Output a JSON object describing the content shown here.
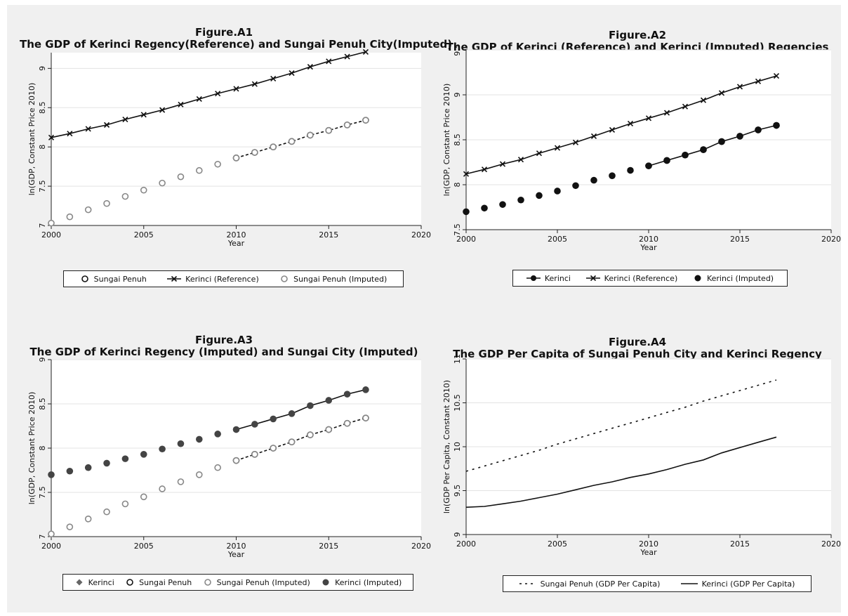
{
  "chart_data": [
    {
      "type": "line",
      "title": "Figure.A1",
      "subtitle": "The GDP of Kerinci Regency(Reference) and Sungai Penuh City(Imputed)",
      "xlabel": "Year",
      "ylabel": "ln(GDP, Constant Price 2010)",
      "xlim": [
        2000,
        2020
      ],
      "ylim": [
        7,
        9.2
      ],
      "xticks": [
        2000,
        2005,
        2010,
        2015,
        2020
      ],
      "yticks": [
        7,
        7.5,
        8,
        8.5,
        9
      ],
      "grid": true,
      "legend_position": "bottom",
      "legend": [
        "Sungai Penuh",
        "Kerinci (Reference)",
        "Sungai Penuh (Imputed)"
      ],
      "series": [
        {
          "name": "Sungai Penuh",
          "marker": "hollow-circle",
          "line": "dash",
          "color": "#111111",
          "x": [
            2010,
            2011,
            2012,
            2013,
            2014,
            2015,
            2016,
            2017
          ],
          "values": [
            7.86,
            7.93,
            8.0,
            8.07,
            8.15,
            8.21,
            8.28,
            8.34
          ]
        },
        {
          "name": "Kerinci (Reference)",
          "marker": "x",
          "line": "solid",
          "color": "#111111",
          "x": [
            2000,
            2001,
            2002,
            2003,
            2004,
            2005,
            2006,
            2007,
            2008,
            2009,
            2010,
            2011,
            2012,
            2013,
            2014,
            2015,
            2016,
            2017
          ],
          "values": [
            8.12,
            8.17,
            8.23,
            8.28,
            8.35,
            8.41,
            8.47,
            8.54,
            8.61,
            8.68,
            8.74,
            8.8,
            8.87,
            8.94,
            9.02,
            9.09,
            9.15,
            9.21
          ]
        },
        {
          "name": "Sungai Penuh (Imputed)",
          "marker": "gray-circle",
          "line": "none",
          "color": "#888888",
          "x": [
            2000,
            2001,
            2002,
            2003,
            2004,
            2005,
            2006,
            2007,
            2008,
            2009,
            2010,
            2011,
            2012,
            2013,
            2014,
            2015,
            2016,
            2017
          ],
          "values": [
            7.03,
            7.11,
            7.2,
            7.28,
            7.37,
            7.45,
            7.54,
            7.62,
            7.7,
            7.78,
            7.86,
            7.93,
            8.0,
            8.07,
            8.15,
            8.21,
            8.28,
            8.34
          ]
        }
      ]
    },
    {
      "type": "line",
      "title": "Figure.A2",
      "subtitle": "The GDP of Kerinci (Reference) and Kerinci (Imputed) Regencies",
      "xlabel": "Year",
      "ylabel": "ln(GDP, Constant Price 2010)",
      "xlim": [
        2000,
        2020
      ],
      "ylim": [
        7.5,
        9.5
      ],
      "xticks": [
        2000,
        2005,
        2010,
        2015,
        2020
      ],
      "yticks": [
        7.5,
        8,
        8.5,
        9,
        9.5
      ],
      "grid": true,
      "legend_position": "bottom",
      "legend": [
        "Kerinci",
        "Kerinci (Reference)",
        "Kerinci (Imputed)"
      ],
      "series": [
        {
          "name": "Kerinci",
          "marker": "solid-circle",
          "line": "solid",
          "color": "#111111",
          "x": [
            2010,
            2011,
            2012,
            2013,
            2014,
            2015,
            2016,
            2017
          ],
          "values": [
            8.21,
            8.27,
            8.33,
            8.39,
            8.48,
            8.54,
            8.61,
            8.66
          ]
        },
        {
          "name": "Kerinci (Reference)",
          "marker": "x",
          "line": "solid",
          "color": "#111111",
          "x": [
            2000,
            2001,
            2002,
            2003,
            2004,
            2005,
            2006,
            2007,
            2008,
            2009,
            2010,
            2011,
            2012,
            2013,
            2014,
            2015,
            2016,
            2017
          ],
          "values": [
            8.12,
            8.17,
            8.23,
            8.28,
            8.35,
            8.41,
            8.47,
            8.54,
            8.61,
            8.68,
            8.74,
            8.8,
            8.87,
            8.94,
            9.02,
            9.09,
            9.15,
            9.21
          ]
        },
        {
          "name": "Kerinci (Imputed)",
          "marker": "solid-circle",
          "line": "none",
          "color": "#111111",
          "x": [
            2000,
            2001,
            2002,
            2003,
            2004,
            2005,
            2006,
            2007,
            2008,
            2009,
            2010,
            2011,
            2012,
            2013,
            2014,
            2015,
            2016,
            2017
          ],
          "values": [
            7.7,
            7.74,
            7.78,
            7.83,
            7.88,
            7.93,
            7.99,
            8.05,
            8.1,
            8.16,
            8.21,
            8.27,
            8.33,
            8.39,
            8.48,
            8.54,
            8.61,
            8.66
          ]
        }
      ]
    },
    {
      "type": "line",
      "title": "Figure.A3",
      "subtitle": "The GDP of Kerinci Regency (Imputed) and Sungai City (Imputed)",
      "xlabel": "Year",
      "ylabel": "ln(GDP, Constant Price 2010)",
      "xlim": [
        2000,
        2020
      ],
      "ylim": [
        7,
        9
      ],
      "xticks": [
        2000,
        2005,
        2010,
        2015,
        2020
      ],
      "yticks": [
        7,
        7.5,
        8,
        8.5,
        9
      ],
      "grid": true,
      "legend_position": "bottom",
      "legend": [
        "Kerinci",
        "Sungai Penuh",
        "Sungai Penuh (Imputed)",
        "Kerinci (Imputed)"
      ],
      "series": [
        {
          "name": "Kerinci",
          "marker": "diamond",
          "line": "solid",
          "color": "#111111",
          "x": [
            2010,
            2011,
            2012,
            2013,
            2014,
            2015,
            2016,
            2017
          ],
          "values": [
            8.21,
            8.27,
            8.33,
            8.39,
            8.48,
            8.54,
            8.61,
            8.66
          ]
        },
        {
          "name": "Sungai Penuh",
          "marker": "hollow-circle",
          "line": "dash",
          "color": "#111111",
          "x": [
            2010,
            2011,
            2012,
            2013,
            2014,
            2015,
            2016,
            2017
          ],
          "values": [
            7.86,
            7.93,
            8.0,
            8.07,
            8.15,
            8.21,
            8.28,
            8.34
          ]
        },
        {
          "name": "Sungai Penuh (Imputed)",
          "marker": "gray-circle",
          "line": "none",
          "color": "#888888",
          "x": [
            2000,
            2001,
            2002,
            2003,
            2004,
            2005,
            2006,
            2007,
            2008,
            2009,
            2010,
            2011,
            2012,
            2013,
            2014,
            2015,
            2016,
            2017
          ],
          "values": [
            7.03,
            7.11,
            7.2,
            7.28,
            7.37,
            7.45,
            7.54,
            7.62,
            7.7,
            7.78,
            7.86,
            7.93,
            8.0,
            8.07,
            8.15,
            8.21,
            8.28,
            8.34
          ]
        },
        {
          "name": "Kerinci (Imputed)",
          "marker": "dark-circle",
          "line": "none",
          "color": "#444444",
          "x": [
            2000,
            2001,
            2002,
            2003,
            2004,
            2005,
            2006,
            2007,
            2008,
            2009,
            2010,
            2011,
            2012,
            2013,
            2014,
            2015,
            2016,
            2017
          ],
          "values": [
            7.7,
            7.74,
            7.78,
            7.83,
            7.88,
            7.93,
            7.99,
            8.05,
            8.1,
            8.16,
            8.21,
            8.27,
            8.33,
            8.39,
            8.48,
            8.54,
            8.61,
            8.66
          ]
        }
      ]
    },
    {
      "type": "line",
      "title": "Figure.A4",
      "subtitle": "The GDP Per Capita of Sungai Penuh City and Kerinci Regency",
      "xlabel": "Year",
      "ylabel": "ln(GDP Per Capita, Constant 2010)",
      "xlim": [
        2000,
        2020
      ],
      "ylim": [
        9,
        11
      ],
      "xticks": [
        2000,
        2005,
        2010,
        2015,
        2020
      ],
      "yticks": [
        9,
        9.5,
        10,
        10.5,
        11
      ],
      "grid": true,
      "legend_position": "bottom",
      "legend": [
        "Sungai Penuh (GDP Per Capita)",
        "Kerinci (GDP Per Capita)"
      ],
      "series": [
        {
          "name": "Sungai Penuh (GDP Per Capita)",
          "marker": "none",
          "line": "dash",
          "color": "#111111",
          "x": [
            2000,
            2001,
            2002,
            2003,
            2004,
            2005,
            2006,
            2007,
            2008,
            2009,
            2010,
            2011,
            2012,
            2013,
            2014,
            2015,
            2016,
            2017
          ],
          "values": [
            9.72,
            9.78,
            9.84,
            9.9,
            9.96,
            10.03,
            10.09,
            10.15,
            10.21,
            10.27,
            10.33,
            10.39,
            10.45,
            10.52,
            10.58,
            10.64,
            10.7,
            10.76
          ]
        },
        {
          "name": "Kerinci (GDP Per Capita)",
          "marker": "none",
          "line": "solid",
          "color": "#111111",
          "x": [
            2000,
            2001,
            2002,
            2003,
            2004,
            2005,
            2006,
            2007,
            2008,
            2009,
            2010,
            2011,
            2012,
            2013,
            2014,
            2015,
            2016,
            2017
          ],
          "values": [
            9.31,
            9.32,
            9.35,
            9.38,
            9.42,
            9.46,
            9.51,
            9.56,
            9.6,
            9.65,
            9.69,
            9.74,
            9.8,
            9.85,
            9.93,
            9.99,
            10.05,
            10.11
          ]
        }
      ]
    }
  ]
}
